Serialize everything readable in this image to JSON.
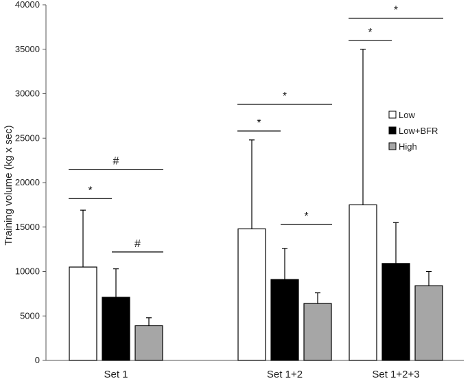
{
  "chart_data": {
    "type": "bar",
    "title": "",
    "xlabel": "",
    "ylabel": "Training volume (kg x sec)",
    "ylim": [
      0,
      40000
    ],
    "yticks": [
      0,
      5000,
      10000,
      15000,
      20000,
      25000,
      30000,
      35000,
      40000
    ],
    "grid": false,
    "legend_position": "right",
    "categories": [
      "Set 1",
      "Set 1+2",
      "Set 1+2+3"
    ],
    "series": [
      {
        "name": "Low",
        "color": "#ffffff",
        "values": [
          10500,
          14800,
          17500
        ],
        "errors": [
          6400,
          10000,
          17500
        ]
      },
      {
        "name": "Low+BFR",
        "color": "#000000",
        "values": [
          7100,
          9100,
          10900
        ],
        "errors": [
          3200,
          3500,
          4600
        ]
      },
      {
        "name": "High",
        "color": "#a6a6a6",
        "values": [
          3900,
          6400,
          8400
        ],
        "errors": [
          900,
          1200,
          1600
        ]
      }
    ],
    "annotations": [
      {
        "group": 0,
        "from": 0,
        "to": 1,
        "symbol": "*",
        "level": 18200
      },
      {
        "group": 0,
        "from": 0,
        "to": 2,
        "symbol": "#",
        "level": 21500
      },
      {
        "group": 0,
        "from": 1,
        "to": 2,
        "symbol": "#",
        "level": 12200
      },
      {
        "group": 1,
        "from": 0,
        "to": 1,
        "symbol": "*",
        "level": 25800
      },
      {
        "group": 1,
        "from": 0,
        "to": 2,
        "symbol": "*",
        "level": 28800
      },
      {
        "group": 1,
        "from": 1,
        "to": 2,
        "symbol": "*",
        "level": 15300
      },
      {
        "group": 2,
        "from": 0,
        "to": 1,
        "symbol": "*",
        "level": 36000
      },
      {
        "group": 2,
        "from": 0,
        "to": 2,
        "symbol": "*",
        "level": 38500
      }
    ]
  }
}
